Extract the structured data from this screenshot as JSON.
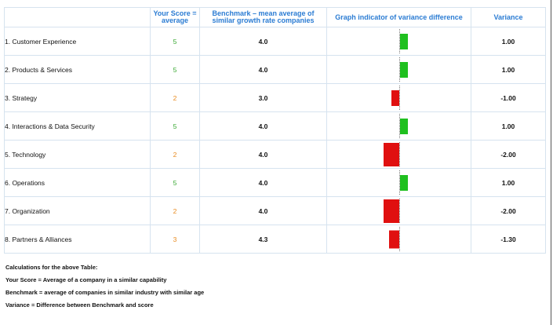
{
  "headers": {
    "criteria": "",
    "your_score": "Your Score = average",
    "benchmark": "Benchmark – mean average of similar growth rate companies",
    "graph": "Graph indicator of variance difference",
    "variance": "Variance"
  },
  "rows": [
    {
      "label": "1. Customer Experience",
      "score": "5",
      "benchmark": "4.0",
      "variance": "1.00",
      "variance_value": 1.0
    },
    {
      "label": "2. Products & Services",
      "score": "5",
      "benchmark": "4.0",
      "variance": "1.00",
      "variance_value": 1.0
    },
    {
      "label": "3. Strategy",
      "score": "2",
      "benchmark": "3.0",
      "variance": "-1.00",
      "variance_value": -1.0
    },
    {
      "label": "4. Interactions & Data Security",
      "score": "5",
      "benchmark": "4.0",
      "variance": "1.00",
      "variance_value": 1.0
    },
    {
      "label": "5. Technology",
      "score": "2",
      "benchmark": "4.0",
      "variance": "-2.00",
      "variance_value": -2.0
    },
    {
      "label": "6. Operations",
      "score": "5",
      "benchmark": "4.0",
      "variance": "1.00",
      "variance_value": 1.0
    },
    {
      "label": "7. Organization",
      "score": "2",
      "benchmark": "4.0",
      "variance": "-2.00",
      "variance_value": -2.0
    },
    {
      "label": "8. Partners & Alliances",
      "score": "3",
      "benchmark": "4.3",
      "variance": "-1.30",
      "variance_value": -1.3
    }
  ],
  "colors": {
    "positive_bar": "#1fc01f",
    "negative_bar": "#e01010",
    "score_high": "#39a832",
    "score_low": "#e88a1e",
    "header_text": "#2b7cd3"
  },
  "notes": {
    "title": "Calculations for the above Table:",
    "your_score": "Your Score = Average of a company in a similar capability",
    "benchmark": "Benchmark = average of companies in similar industry with similar age",
    "variance": "Variance = Difference between Benchmark and score"
  }
}
